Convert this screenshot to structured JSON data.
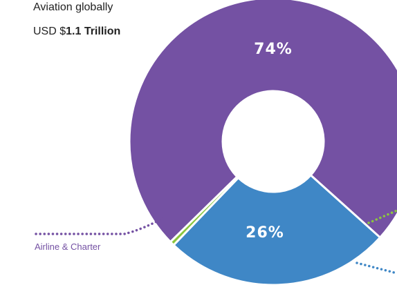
{
  "header": {
    "title_line1": "Aviation globally",
    "title_prefix": "USD $",
    "title_value": "1.1 Trillion"
  },
  "chart_data": {
    "type": "pie",
    "donut": true,
    "categories": [
      "",
      "Airline & Charter",
      ""
    ],
    "values": [
      74,
      25.5,
      0.5
    ],
    "value_labels": [
      "74%",
      "26%",
      ""
    ],
    "colors": [
      "#7451a3",
      "#3f87c6",
      "#8cc63f"
    ],
    "legend": "none",
    "label_color": "#7451a3"
  }
}
